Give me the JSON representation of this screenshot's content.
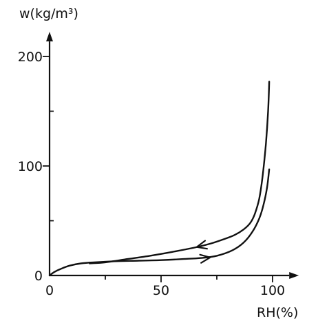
{
  "chart_data": {
    "type": "line",
    "title": "",
    "ylabel": "w(kg/m³)",
    "xlabel": "RH(%)",
    "xlim": [
      0,
      105
    ],
    "ylim": [
      0,
      210
    ],
    "xticks": [
      0,
      50,
      100
    ],
    "yticks": [
      0,
      100,
      200
    ],
    "xtick_labels": [
      "0",
      "50",
      "100"
    ],
    "ytick_labels": [
      "0",
      "100",
      "200"
    ],
    "grid": false,
    "legend": "none",
    "colors": {
      "ink": "#111111"
    },
    "series": [
      {
        "direction": "forward",
        "x": [
          0,
          2,
          5,
          9,
          14,
          20,
          30,
          40,
          50,
          60,
          68,
          75,
          82,
          87,
          91,
          94,
          96,
          97.5,
          98.5
        ],
        "y": [
          0,
          3,
          6,
          9,
          11,
          12,
          13,
          13.5,
          14,
          15,
          16,
          18,
          23,
          30,
          40,
          52,
          65,
          80,
          97
        ]
      },
      {
        "direction": "reverse",
        "x": [
          98.5,
          98,
          97,
          95.5,
          94,
          92,
          90,
          87,
          83,
          78,
          72,
          65,
          55,
          45,
          35,
          25,
          18
        ],
        "y": [
          177,
          150,
          120,
          90,
          70,
          56,
          48,
          42,
          37,
          33,
          29,
          25.5,
          21.5,
          18,
          15,
          12,
          11
        ]
      }
    ],
    "arrows": [
      {
        "series": 0,
        "x": 72,
        "y": 16.5
      },
      {
        "series": 1,
        "x": 66,
        "y": 26
      }
    ]
  }
}
